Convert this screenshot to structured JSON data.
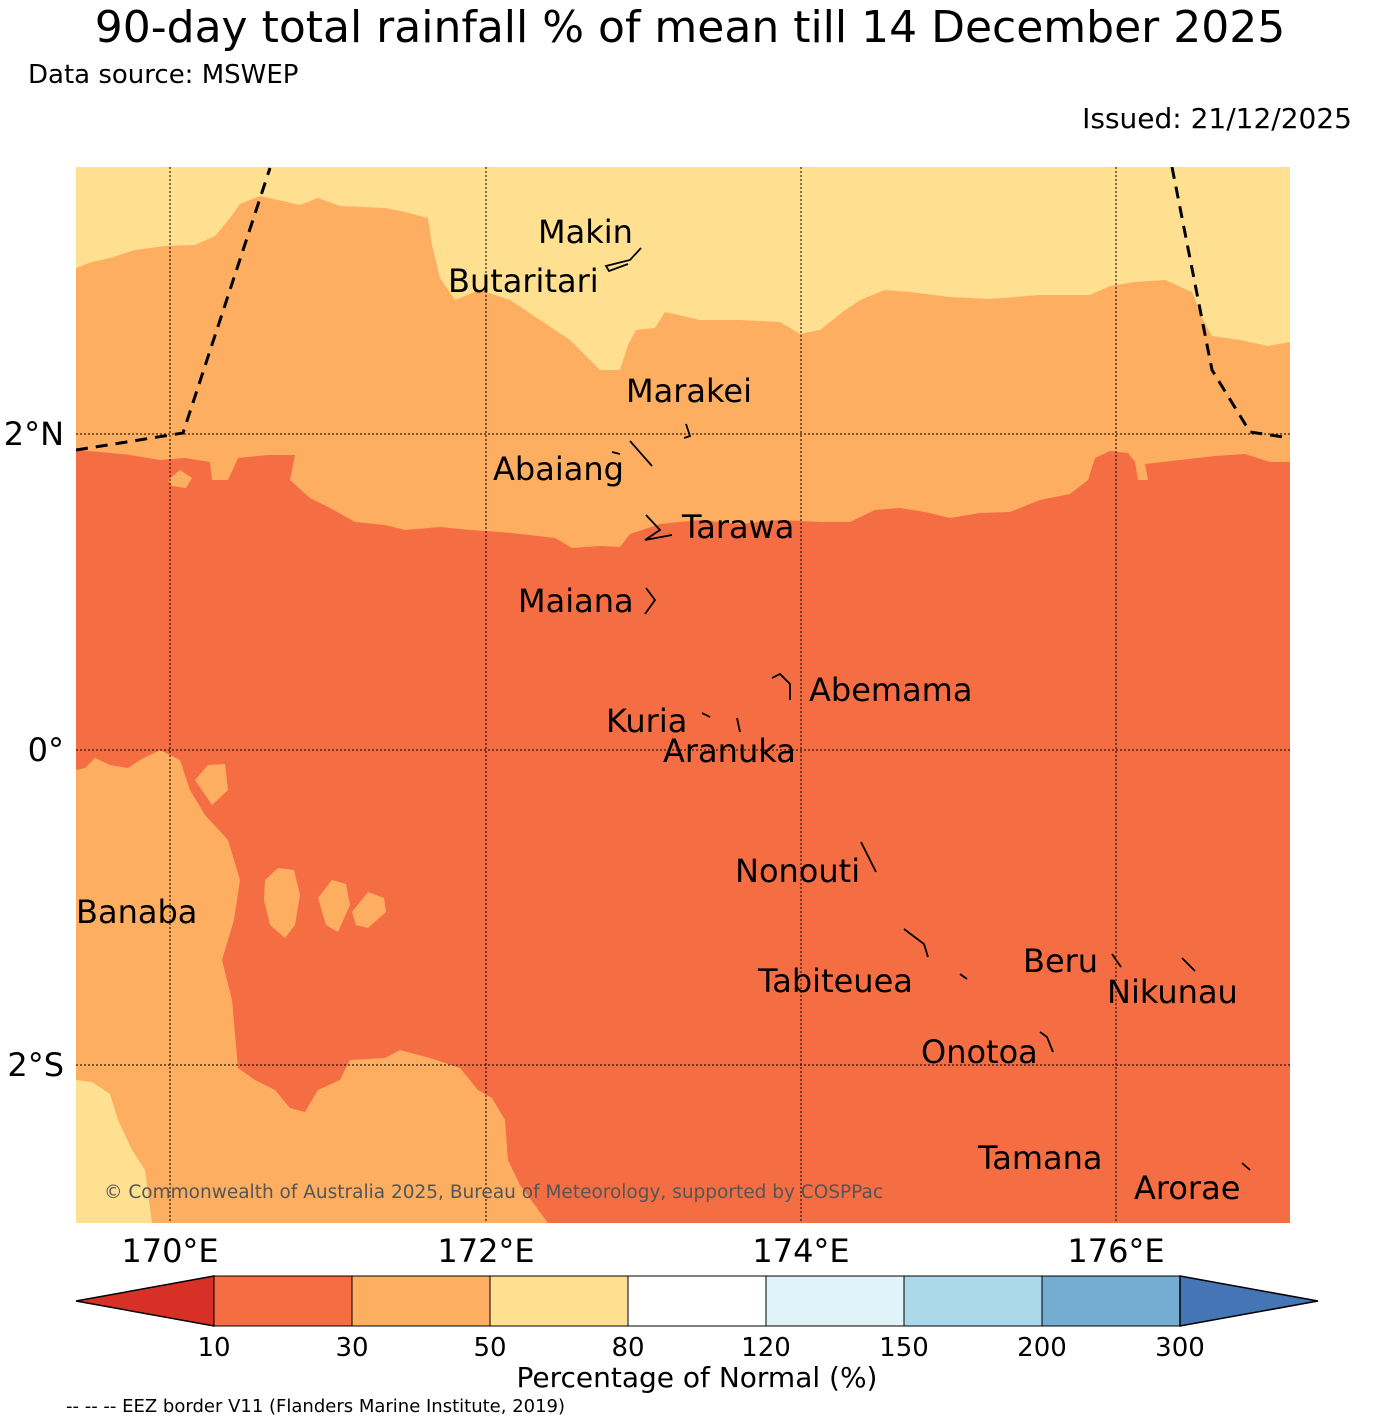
{
  "title": "90-day total rainfall % of mean till 14 December 2025",
  "source": "Data source: MSWEP",
  "issued": "Issued: 21/12/2025",
  "axes": {
    "lon_ticks": [
      "170°E",
      "172°E",
      "174°E",
      "176°E"
    ],
    "lat_ticks": [
      "2°N",
      "0°",
      "2°S"
    ]
  },
  "islands": {
    "makin": "Makin",
    "butaritari": "Butaritari",
    "marakei": "Marakei",
    "abaiang": "Abaiang",
    "tarawa": "Tarawa",
    "maiana": "Maiana",
    "abemama": "Abemama",
    "kuria": "Kuria",
    "aranuka": "Aranuka",
    "nonouti": "Nonouti",
    "banaba": "Banaba",
    "beru": "Beru",
    "tabiteuea": "Tabiteuea",
    "nikunau": "Nikunau",
    "onotoa": "Onotoa",
    "tamana": "Tamana",
    "arorae": "Arorae"
  },
  "copyright": "© Commonwealth of Australia 2025, Bureau of Meteorology, supported by COSPPac",
  "colorbar": {
    "title": "Percentage of Normal (%)",
    "labels": [
      "10",
      "30",
      "50",
      "80",
      "120",
      "150",
      "200",
      "300"
    ],
    "colors": [
      "#d73027",
      "#f46d43",
      "#fdae61",
      "#fee090",
      "#ffffff",
      "#e0f3f8",
      "#abd9e9",
      "#74add1",
      "#4575b4"
    ]
  },
  "eez_note": "-- -- -- EEZ border V11 (Flanders Marine Institute, 2019)"
}
